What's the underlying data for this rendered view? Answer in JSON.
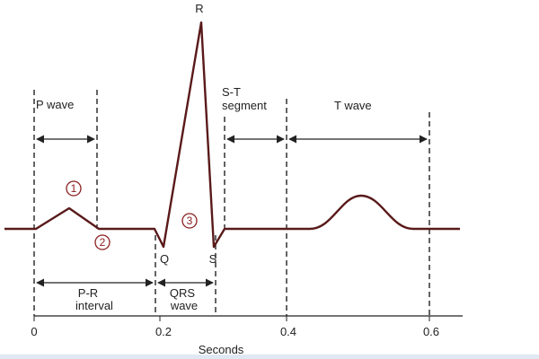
{
  "labels": {
    "p_wave": "P wave",
    "r": "R",
    "st_top": "S-T",
    "st_bottom": "segment",
    "t_wave": "T wave",
    "circle_1": "1",
    "circle_2": "2",
    "circle_3": "3",
    "q": "Q",
    "s": "S",
    "pr_top": "P-R",
    "pr_bottom": "interval",
    "qrs_top": "QRS",
    "qrs_bottom": "wave"
  },
  "axis": {
    "ticks": [
      "0",
      "0.2",
      "0.4",
      "0.6"
    ],
    "title": "Seconds"
  }
}
